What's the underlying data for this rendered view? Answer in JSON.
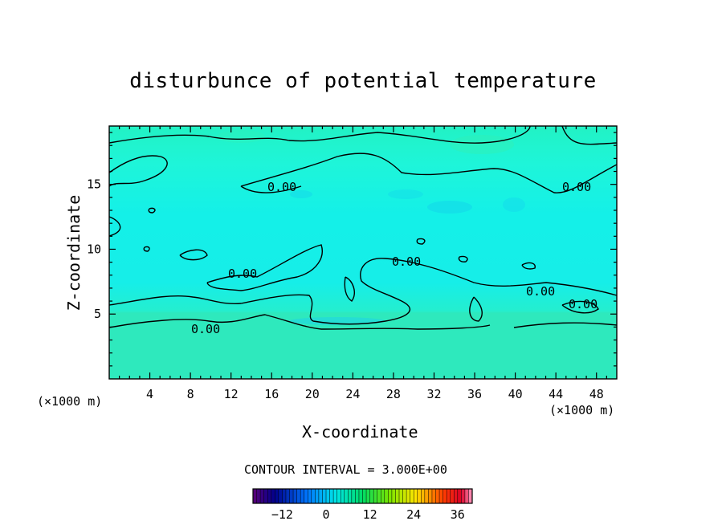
{
  "chart_data": {
    "type": "heatmap",
    "title": "disturbunce of potential temperature",
    "xlabel": "X-coordinate",
    "ylabel": "Z-coordinate",
    "x_unit": "(×1000 m)",
    "xlim": [
      0,
      50
    ],
    "ylim": [
      0,
      19.5
    ],
    "x_ticks": [
      4,
      8,
      12,
      16,
      20,
      24,
      28,
      32,
      36,
      40,
      44,
      48
    ],
    "y_ticks": [
      5,
      10,
      15
    ],
    "contour_interval_text": "CONTOUR INTERVAL = 3.000E+00",
    "contour_labels": [
      "0.00",
      "0.00",
      "0.00",
      "0.00",
      "0.00",
      "0.00",
      "0.00"
    ],
    "colorbar": {
      "min": -20,
      "max": 40,
      "ticks": [
        -12,
        0,
        12,
        24,
        36
      ],
      "tick_labels": [
        "−12",
        "0",
        "12",
        "24",
        "36"
      ]
    },
    "field_value_range": [
      -3,
      3
    ]
  }
}
